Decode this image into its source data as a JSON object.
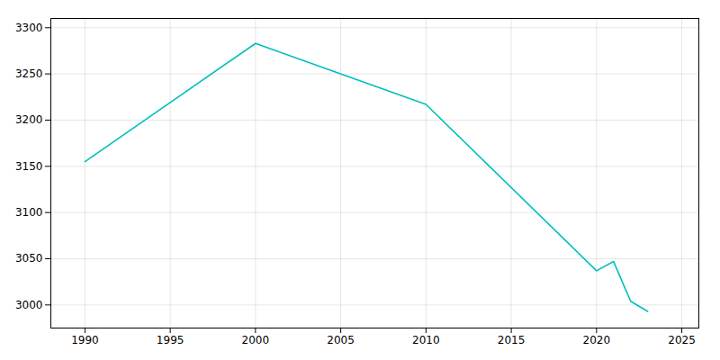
{
  "chart_data": {
    "type": "line",
    "x": [
      1990,
      2000,
      2010,
      2020,
      2021,
      2022,
      2023
    ],
    "values": [
      3155,
      3283,
      3217,
      3037,
      3047,
      3004,
      2993
    ],
    "color": "#00BFBF",
    "xlim": [
      1988,
      2026
    ],
    "ylim": [
      2975,
      3310
    ],
    "xticks": [
      1990,
      1995,
      2000,
      2005,
      2010,
      2015,
      2020,
      2025
    ],
    "yticks": [
      3000,
      3050,
      3100,
      3150,
      3200,
      3250,
      3300
    ],
    "grid": true
  }
}
